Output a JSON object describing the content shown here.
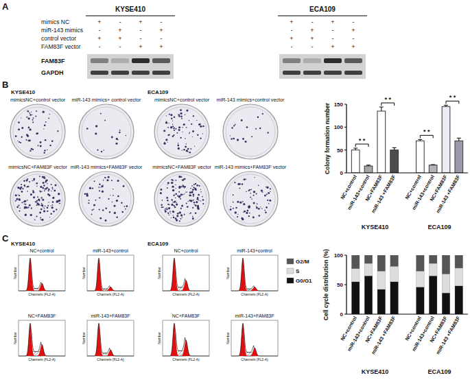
{
  "panel_labels": [
    "A",
    "B",
    "C"
  ],
  "blot": {
    "cell_lines": [
      "KYSE410",
      "ECA109"
    ],
    "conditions": [
      {
        "label": "mimics NC",
        "signs": [
          "+",
          "-",
          "+",
          "-",
          "+",
          "-",
          "+",
          "-"
        ]
      },
      {
        "label": "miR-143 mimics",
        "signs": [
          "-",
          "+",
          "-",
          "+",
          "-",
          "+",
          "-",
          "+"
        ]
      },
      {
        "label": "control vector",
        "signs": [
          "+",
          "+",
          "-",
          "-",
          "+",
          "+",
          "-",
          "-"
        ]
      },
      {
        "label": "FAM83F vector",
        "signs": [
          "-",
          "-",
          "+",
          "+",
          "-",
          "-",
          "+",
          "+"
        ]
      }
    ],
    "bands": [
      "FAM83F",
      "GAPDH"
    ]
  },
  "colonies": {
    "cell_lines": [
      "KYSE410",
      "ECA109"
    ],
    "plates": [
      "mimicsNC+control vector",
      "miR-143 mimics+ control vector",
      "mimicsNC+FAM83F vector",
      "miR-143 mimics+FAM83F vector",
      "mimicsNC+control vector",
      "miR-143 mimics+control vector",
      "mimicsNC+FAM83F vector",
      "miR-143 mimics+FAM83F vector"
    ]
  },
  "flow": {
    "cell_lines": [
      "KYSE410",
      "ECA109"
    ],
    "titles": [
      "NC+control",
      "miR-143+control",
      "NC+FAM83F",
      "miR-143+FAM83F",
      "NC+control",
      "miR-143+control",
      "NC+FAM83F",
      "miR-143+FAM83F"
    ],
    "y_label": "Number",
    "x_label": "Channels (FL2-A)"
  },
  "chart_data": [
    {
      "type": "bar",
      "y_label": "Colony formation number",
      "categories": [
        "NC+control",
        "miR-143+control",
        "NC+FAM83F",
        "miR-143 +FAM83F",
        "NC+control",
        "miR-143+control",
        "NC+FAM83F",
        "miR-143 +FAM83F"
      ],
      "groups": [
        "KYSE410",
        "ECA109"
      ],
      "values": [
        50,
        15,
        135,
        50,
        70,
        17,
        145,
        70
      ],
      "errors": [
        4,
        2,
        9,
        5,
        3,
        1,
        3,
        6
      ],
      "colors": [
        "#ffffff",
        "#a6a6a6",
        "#ffffff",
        "#4d4d4d",
        "#ffffff",
        "#b3b3b8",
        "#ececf4",
        "#9a9aab"
      ],
      "ylim": [
        0,
        150
      ],
      "yticks": [
        0,
        50,
        100,
        150
      ],
      "annotations": [
        {
          "text": "* *",
          "between": [
            0,
            1
          ]
        },
        {
          "text": "* *",
          "between": [
            2,
            3
          ]
        },
        {
          "text": "* *",
          "between": [
            4,
            5
          ]
        },
        {
          "text": "* *",
          "between": [
            6,
            7
          ]
        }
      ]
    },
    {
      "type": "bar",
      "stacked": true,
      "y_label": "Cell cycle distribution (%)",
      "categories": [
        "NC+control",
        "miR-143+control",
        "NC+FAM83F",
        "miR-143 +FAM83F",
        "NC+control",
        "miR-143+control",
        "NC+FAM83F",
        "miR-143 +FAM83F"
      ],
      "groups": [
        "KYSE410",
        "ECA109"
      ],
      "series": [
        {
          "name": "G0/G1",
          "color": "#111111",
          "values": [
            55,
            65,
            42,
            55,
            46,
            65,
            36,
            48
          ]
        },
        {
          "name": "S",
          "color": "#dddddd",
          "values": [
            22,
            21,
            31,
            26,
            27,
            21,
            32,
            30
          ]
        },
        {
          "name": "G2/M",
          "color": "#555555",
          "values": [
            23,
            14,
            27,
            19,
            27,
            14,
            32,
            22
          ]
        }
      ],
      "ylim": [
        0,
        100
      ],
      "yticks": [
        0,
        50,
        100
      ],
      "legend": "left"
    }
  ]
}
